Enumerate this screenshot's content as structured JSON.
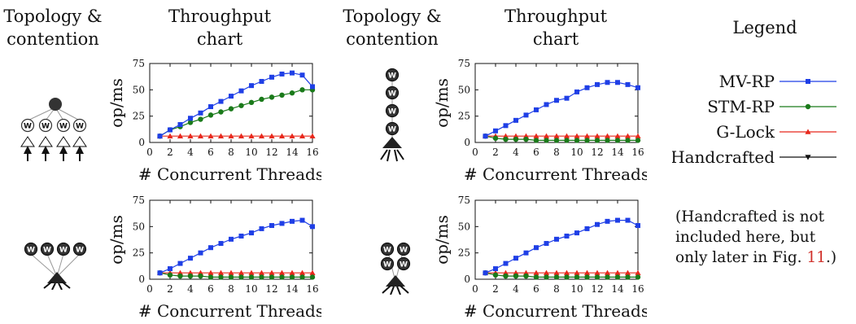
{
  "headers": {
    "left_topology": [
      "Topology &",
      "contention"
    ],
    "left_throughput": [
      "Throughput",
      "chart"
    ],
    "right_topology": [
      "Topology &",
      "contention"
    ],
    "right_throughput": [
      "Throughput",
      "chart"
    ],
    "legend": "Legend"
  },
  "legend": {
    "items": [
      {
        "label": "MV-RP",
        "color": "#1f3fe6",
        "marker": "square"
      },
      {
        "label": "STM-RP",
        "color": "#1a7a1a",
        "marker": "circle"
      },
      {
        "label": "G-Lock",
        "color": "#e8281c",
        "marker": "triangle-up"
      },
      {
        "label": "Handcrafted",
        "color": "#111111",
        "marker": "triangle-down"
      }
    ]
  },
  "note": {
    "text": "(Handcrafted is not included here, but only later in Fig.",
    "ref": "11",
    "suffix": ".)"
  },
  "topology_icons": [
    "tree-4-writers",
    "chain-4-writers",
    "fan-4-writers",
    "grid-2x2-writers"
  ],
  "node_letter": "W",
  "chart_data": [
    {
      "type": "line",
      "x": [
        1,
        2,
        3,
        4,
        5,
        6,
        7,
        8,
        9,
        10,
        11,
        12,
        13,
        14,
        15,
        16
      ],
      "xlabel": "# Concurrent Threads",
      "ylabel": "op/ms",
      "xlim": [
        0,
        16
      ],
      "ylim": [
        0,
        75
      ],
      "xticks": [
        0,
        2,
        4,
        6,
        8,
        10,
        12,
        14,
        16
      ],
      "yticks": [
        0,
        25,
        50,
        75
      ],
      "series": [
        {
          "name": "MV-RP",
          "values": [
            6,
            12,
            17,
            23,
            28,
            34,
            39,
            44,
            49,
            54,
            58,
            62,
            65,
            66,
            64,
            53
          ]
        },
        {
          "name": "STM-RP",
          "values": [
            6,
            12,
            15,
            19,
            22,
            26,
            29,
            32,
            35,
            38,
            41,
            43,
            45,
            47,
            50,
            50
          ]
        },
        {
          "name": "G-Lock",
          "values": [
            6,
            6,
            6,
            6,
            6,
            6,
            6,
            6,
            6,
            6,
            6,
            6,
            6,
            6,
            6,
            6
          ]
        }
      ]
    },
    {
      "type": "line",
      "x": [
        1,
        2,
        3,
        4,
        5,
        6,
        7,
        8,
        9,
        10,
        11,
        12,
        13,
        14,
        15,
        16
      ],
      "xlabel": "# Concurrent Threads",
      "ylabel": "op/ms",
      "xlim": [
        0,
        16
      ],
      "ylim": [
        0,
        75
      ],
      "xticks": [
        0,
        2,
        4,
        6,
        8,
        10,
        12,
        14,
        16
      ],
      "yticks": [
        0,
        25,
        50,
        75
      ],
      "series": [
        {
          "name": "MV-RP",
          "values": [
            6,
            11,
            16,
            21,
            26,
            31,
            36,
            40,
            42,
            48,
            52,
            55,
            57,
            57,
            55,
            52
          ]
        },
        {
          "name": "STM-RP",
          "values": [
            6,
            4,
            3,
            3,
            3,
            2,
            2,
            2,
            2,
            2,
            2,
            2,
            2,
            2,
            2,
            2
          ]
        },
        {
          "name": "G-Lock",
          "values": [
            6,
            6,
            6,
            6,
            6,
            6,
            6,
            6,
            6,
            6,
            6,
            6,
            6,
            6,
            6,
            6
          ]
        }
      ]
    },
    {
      "type": "line",
      "x": [
        1,
        2,
        3,
        4,
        5,
        6,
        7,
        8,
        9,
        10,
        11,
        12,
        13,
        14,
        15,
        16
      ],
      "xlabel": "# Concurrent Threads",
      "ylabel": "op/ms",
      "xlim": [
        0,
        16
      ],
      "ylim": [
        0,
        75
      ],
      "xticks": [
        0,
        2,
        4,
        6,
        8,
        10,
        12,
        14,
        16
      ],
      "yticks": [
        0,
        25,
        50,
        75
      ],
      "series": [
        {
          "name": "MV-RP",
          "values": [
            6,
            10,
            15,
            20,
            25,
            30,
            34,
            38,
            41,
            44,
            48,
            51,
            53,
            55,
            56,
            50
          ]
        },
        {
          "name": "STM-RP",
          "values": [
            6,
            4,
            3,
            3,
            3,
            2,
            2,
            2,
            2,
            2,
            2,
            2,
            2,
            2,
            2,
            2
          ]
        },
        {
          "name": "G-Lock",
          "values": [
            6,
            6,
            6,
            6,
            6,
            6,
            6,
            6,
            6,
            6,
            6,
            6,
            6,
            6,
            6,
            6
          ]
        }
      ]
    },
    {
      "type": "line",
      "x": [
        1,
        2,
        3,
        4,
        5,
        6,
        7,
        8,
        9,
        10,
        11,
        12,
        13,
        14,
        15,
        16
      ],
      "xlabel": "# Concurrent Threads",
      "ylabel": "op/ms",
      "xlim": [
        0,
        16
      ],
      "ylim": [
        0,
        75
      ],
      "xticks": [
        0,
        2,
        4,
        6,
        8,
        10,
        12,
        14,
        16
      ],
      "yticks": [
        0,
        25,
        50,
        75
      ],
      "series": [
        {
          "name": "MV-RP",
          "values": [
            6,
            10,
            15,
            20,
            25,
            30,
            34,
            38,
            41,
            44,
            48,
            52,
            55,
            56,
            56,
            51
          ]
        },
        {
          "name": "STM-RP",
          "values": [
            6,
            4,
            3,
            3,
            3,
            2,
            2,
            2,
            2,
            2,
            2,
            2,
            2,
            2,
            2,
            2
          ]
        },
        {
          "name": "G-Lock",
          "values": [
            6,
            6,
            6,
            6,
            6,
            6,
            6,
            6,
            6,
            6,
            6,
            6,
            6,
            6,
            6,
            6
          ]
        }
      ]
    }
  ]
}
